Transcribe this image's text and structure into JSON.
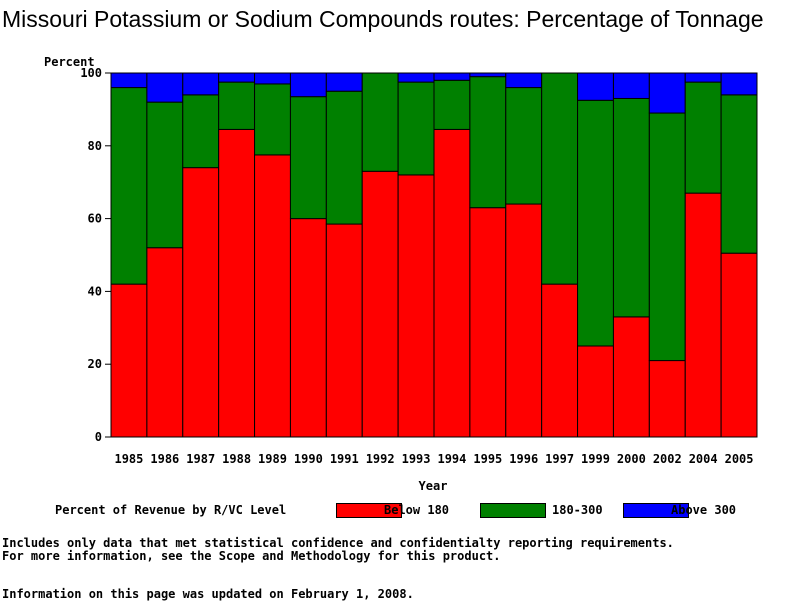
{
  "chart_data": {
    "type": "bar",
    "stacked": true,
    "title": "Missouri Potassium or Sodium Compounds routes: Percentage of Tonnage",
    "ylabel": "Percent",
    "xlabel": "Year",
    "ylim": [
      0,
      100
    ],
    "yticks": [
      0,
      20,
      40,
      60,
      80,
      100
    ],
    "categories": [
      "1985",
      "1986",
      "1987",
      "1988",
      "1989",
      "1990",
      "1991",
      "1992",
      "1993",
      "1994",
      "1995",
      "1996",
      "1997",
      "1999",
      "2000",
      "2002",
      "2004",
      "2005"
    ],
    "series": [
      {
        "name": "Below 180",
        "color": "#ff0000",
        "values": [
          42,
          52,
          74,
          84.5,
          77.5,
          60,
          58.5,
          73,
          72,
          84.5,
          63,
          64,
          42,
          25,
          33,
          21,
          67,
          50.5
        ]
      },
      {
        "name": "180-300",
        "color": "#008000",
        "values": [
          54,
          40,
          20,
          13,
          19.5,
          33.5,
          36.5,
          27,
          25.5,
          13.5,
          36,
          32,
          58,
          67.5,
          60,
          68,
          30.5,
          43.5
        ]
      },
      {
        "name": "Above 300",
        "color": "#0000ff",
        "values": [
          4,
          8,
          6,
          2.5,
          3,
          6.5,
          5,
          0,
          2.5,
          2,
          1,
          4,
          0,
          7.5,
          7,
          11,
          2.5,
          6
        ]
      }
    ],
    "legend_title": "Percent of Revenue by R/VC Level",
    "legend_position": "bottom",
    "grid": false
  },
  "footer": {
    "line1": "Includes only data that met statistical confidence and confidentialty reporting requirements.",
    "line2": "For more information, see the Scope and Methodology for this product.",
    "line3": "Information on this page was updated on February 1, 2008."
  }
}
